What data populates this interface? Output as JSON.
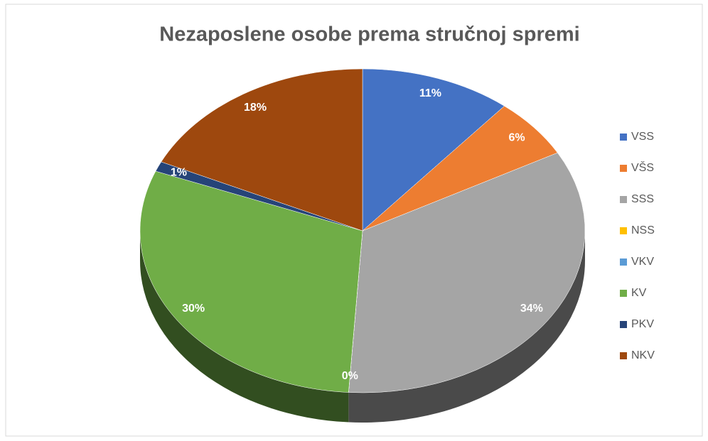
{
  "chart_data": {
    "type": "pie3d",
    "title": "Nezaposlene osobe prema stručnoj spremi",
    "categories": [
      "VSS",
      "VŠS",
      "SSS",
      "NSS",
      "VKV",
      "KV",
      "PKV",
      "NKV"
    ],
    "values": [
      11,
      6,
      34,
      0,
      0,
      30,
      1,
      18
    ],
    "value_labels": [
      "11%",
      "6%",
      "34%",
      null,
      "0%",
      "30%",
      "1%",
      "18%"
    ],
    "colors": [
      "#4472c4",
      "#ed7d31",
      "#a5a5a5",
      "#ffc000",
      "#5b9bd5",
      "#70ad47",
      "#264478",
      "#9e480e"
    ],
    "legend": "right"
  }
}
